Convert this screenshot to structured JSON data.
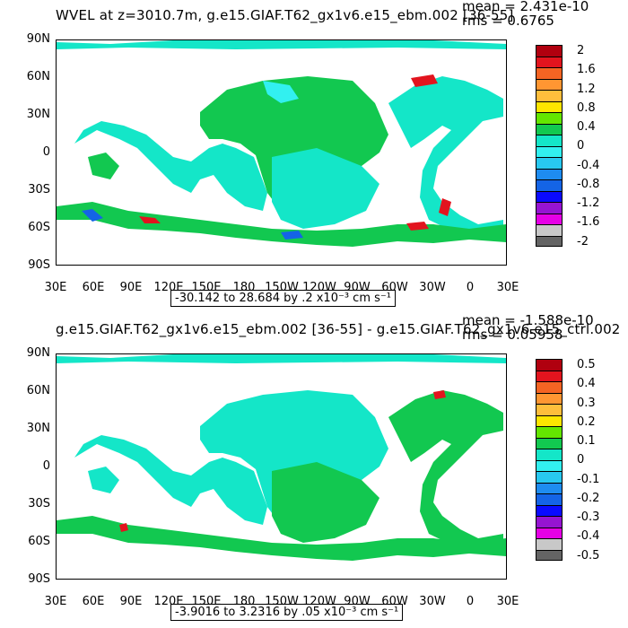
{
  "top": {
    "title": "WVEL at z=3010.7m, g.e15.GIAF.T62_gx1v6.e15_ebm.002 [36-55]",
    "mean": "mean = 2.431e-10",
    "rms": "rms = 0.6765",
    "range": "-30.142 to 28.684 by .2 x10⁻³ cm s⁻¹",
    "colorbar_labels": [
      "2",
      "1.6",
      "1.2",
      "0.8",
      "0.4",
      "0",
      "-0.4",
      "-0.8",
      "-1.2",
      "-1.6",
      "-2"
    ],
    "colorbar_colors": [
      "#b0000f",
      "#e2141e",
      "#f46423",
      "#ff9632",
      "#ffbe3c",
      "#ffe600",
      "#64e600",
      "#12c850",
      "#14e6c8",
      "#32f0f0",
      "#28c8f0",
      "#1e8cf0",
      "#1464e6",
      "#0a0aff",
      "#9614d2",
      "#e600e6",
      "#c8c8c8",
      "#646464"
    ]
  },
  "bottom": {
    "title": "g.e15.GIAF.T62_gx1v6.e15_ebm.002 [36-55] - g.e15.GIAF.T62_gx1v6.e15_ctrl.002",
    "mean": "mean = -1.588e-10",
    "rms": "rms = 0.05958",
    "range": "-3.9016 to 3.2316 by .05 x10⁻³ cm s⁻¹",
    "colorbar_labels": [
      "0.5",
      "0.4",
      "0.3",
      "0.2",
      "0.1",
      "0",
      "-0.1",
      "-0.2",
      "-0.3",
      "-0.4",
      "-0.5"
    ],
    "colorbar_colors": [
      "#b0000f",
      "#e2141e",
      "#f46423",
      "#ff9632",
      "#ffbe3c",
      "#ffe600",
      "#64e600",
      "#12c850",
      "#14e6c8",
      "#32f0f0",
      "#28c8f0",
      "#1e8cf0",
      "#1464e6",
      "#0a0aff",
      "#9614d2",
      "#e600e6",
      "#c8c8c8",
      "#646464"
    ]
  },
  "lat_labels": [
    "90N",
    "60N",
    "30N",
    "0",
    "30S",
    "60S",
    "90S"
  ],
  "lon_labels": [
    "30E",
    "60E",
    "90E",
    "120E",
    "150E",
    "180",
    "150W",
    "120W",
    "90W",
    "60W",
    "30W",
    "0",
    "30E"
  ],
  "ocean_colors": {
    "primary": "#14e6c8",
    "secondary": "#12c850",
    "tertiary": "#32f0f0",
    "accent_warm": "#e2141e",
    "accent_cool": "#1464e6"
  }
}
